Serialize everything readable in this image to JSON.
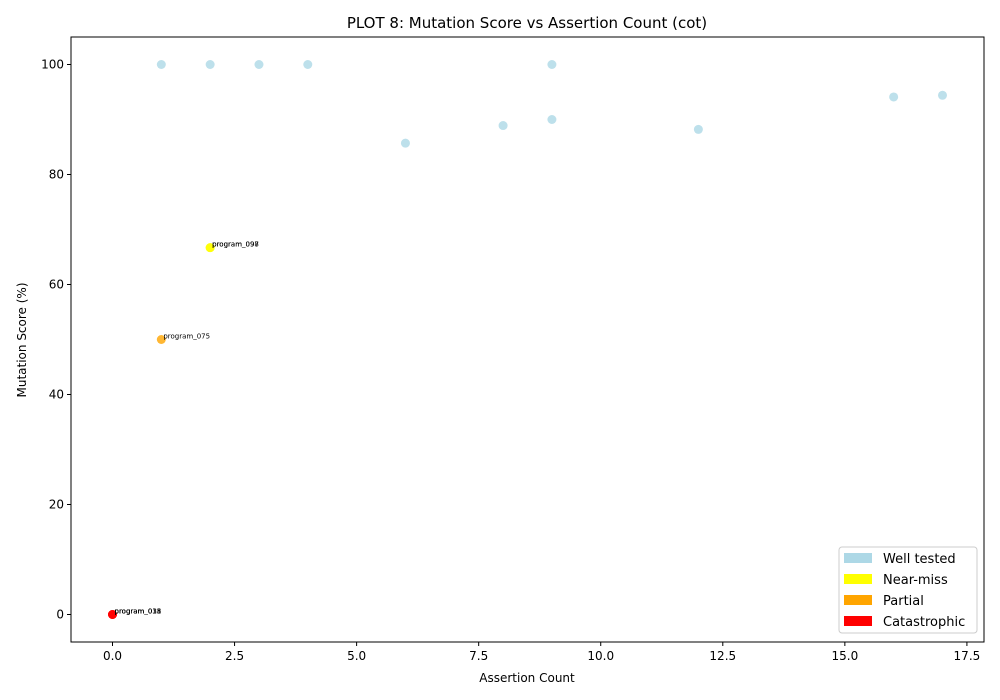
{
  "chart_data": {
    "type": "scatter",
    "title": "PLOT 8: Mutation Score vs Assertion Count (cot)",
    "xlabel": "Assertion Count",
    "ylabel": "Mutation Score (%)",
    "xlim": [
      -0.85,
      17.85
    ],
    "ylim": [
      -5,
      105
    ],
    "xticks": [
      0.0,
      2.5,
      5.0,
      7.5,
      10.0,
      12.5,
      15.0,
      17.5
    ],
    "xtick_labels": [
      "0.0",
      "2.5",
      "5.0",
      "7.5",
      "10.0",
      "12.5",
      "15.0",
      "17.5"
    ],
    "yticks": [
      0,
      20,
      40,
      60,
      80,
      100
    ],
    "ytick_labels": [
      "0",
      "20",
      "40",
      "60",
      "80",
      "100"
    ],
    "grid": false,
    "legend_position": "lower-right",
    "categories": [
      {
        "name": "Well tested",
        "color": "#add8e6"
      },
      {
        "name": "Near-miss",
        "color": "#ffff00"
      },
      {
        "name": "Partial",
        "color": "#ffa500"
      },
      {
        "name": "Catastrophic",
        "color": "#ff0000"
      }
    ],
    "points": [
      {
        "x": 1,
        "y": 100,
        "cat": 0
      },
      {
        "x": 2,
        "y": 100,
        "cat": 0
      },
      {
        "x": 3,
        "y": 100,
        "cat": 0
      },
      {
        "x": 4,
        "y": 100,
        "cat": 0
      },
      {
        "x": 9,
        "y": 100,
        "cat": 0
      },
      {
        "x": 6,
        "y": 85.7,
        "cat": 0
      },
      {
        "x": 8,
        "y": 88.9,
        "cat": 0
      },
      {
        "x": 9,
        "y": 90.0,
        "cat": 0
      },
      {
        "x": 12,
        "y": 88.2,
        "cat": 0
      },
      {
        "x": 16,
        "y": 94.1,
        "cat": 0
      },
      {
        "x": 17,
        "y": 94.4,
        "cat": 0
      },
      {
        "x": 2,
        "y": 66.7,
        "cat": 1,
        "label": "program_097"
      },
      {
        "x": 2,
        "y": 66.7,
        "cat": 1,
        "label": "program_098"
      },
      {
        "x": 1,
        "y": 50,
        "cat": 2,
        "label": "program_075"
      },
      {
        "x": 0,
        "y": 0,
        "cat": 3,
        "label": "program_031"
      },
      {
        "x": 0,
        "y": 0,
        "cat": 3,
        "label": "program_035"
      },
      {
        "x": 0,
        "y": 0,
        "cat": 3,
        "label": "program_018"
      }
    ]
  }
}
